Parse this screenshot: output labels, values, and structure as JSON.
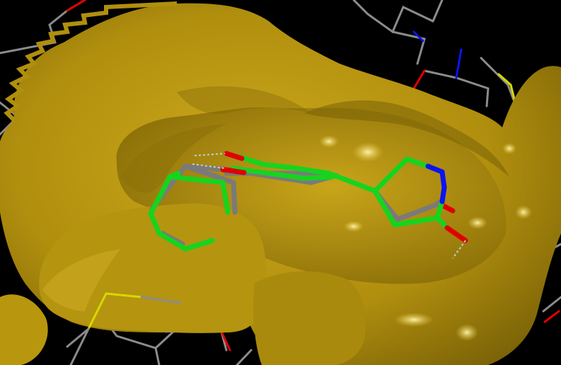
{
  "scene": {
    "kind": "molecular-graphics",
    "background": "#000000",
    "colors": {
      "surface": "#b8970e",
      "surface_dark": "#6e5906",
      "surface_light": "#e3c53a",
      "ligand_green": "#16d41e",
      "ligand_grey": "#7a7a7a",
      "oxygen": "#e00000",
      "nitrogen": "#0a14f0",
      "sulfur": "#d8d800",
      "residue_line": "#8c8c8c",
      "hbond": "#bfcfd8"
    },
    "elements": [
      "protein-surface",
      "residue-lines",
      "ligand-green",
      "ligand-grey",
      "hydrogen-bonds"
    ]
  }
}
